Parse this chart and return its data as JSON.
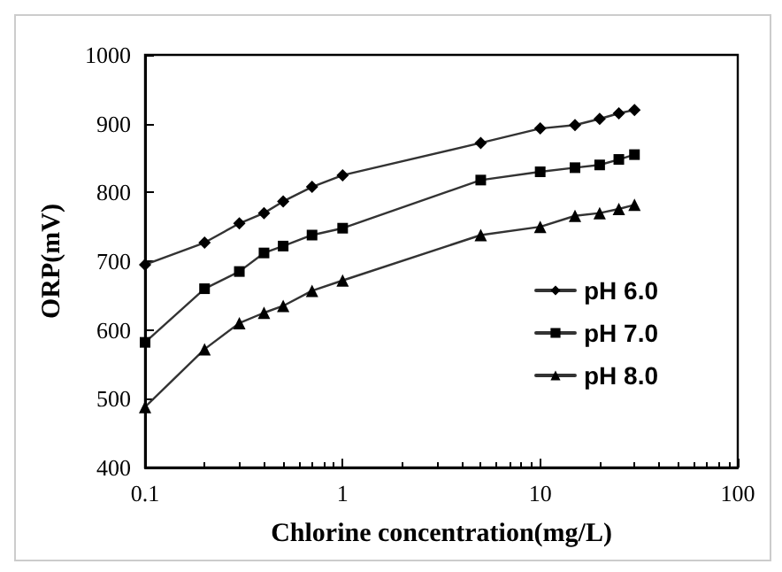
{
  "chart_data": {
    "type": "line",
    "xlabel": "Chlorine concentration(mg/L)",
    "ylabel": "ORP(mV)",
    "log": "x",
    "xlim": [
      0.1,
      100
    ],
    "xticks": [
      0.1,
      1,
      10,
      100
    ],
    "ylim": [
      400,
      1000
    ],
    "yticks": [
      400,
      500,
      600,
      700,
      800,
      900,
      1000
    ],
    "grid": false,
    "legend": "bottom right",
    "x": [
      0.1,
      0.2,
      0.3,
      0.4,
      0.5,
      0.7,
      1,
      5,
      10,
      15,
      20,
      25,
      30
    ],
    "series": [
      {
        "name": "pH 6.0",
        "color": "#333333",
        "marker": "diamond",
        "values": [
          695,
          727,
          755,
          770,
          787,
          808,
          825,
          872,
          893,
          898,
          907,
          915,
          920
        ]
      },
      {
        "name": "pH 7.0",
        "color": "#333333",
        "marker": "square",
        "values": [
          582,
          660,
          685,
          712,
          722,
          738,
          748,
          818,
          830,
          836,
          840,
          848,
          855
        ]
      },
      {
        "name": "pH 8.0",
        "color": "#333333",
        "marker": "triangle",
        "values": [
          488,
          572,
          610,
          625,
          635,
          657,
          672,
          738,
          750,
          766,
          770,
          776,
          782
        ]
      }
    ]
  }
}
